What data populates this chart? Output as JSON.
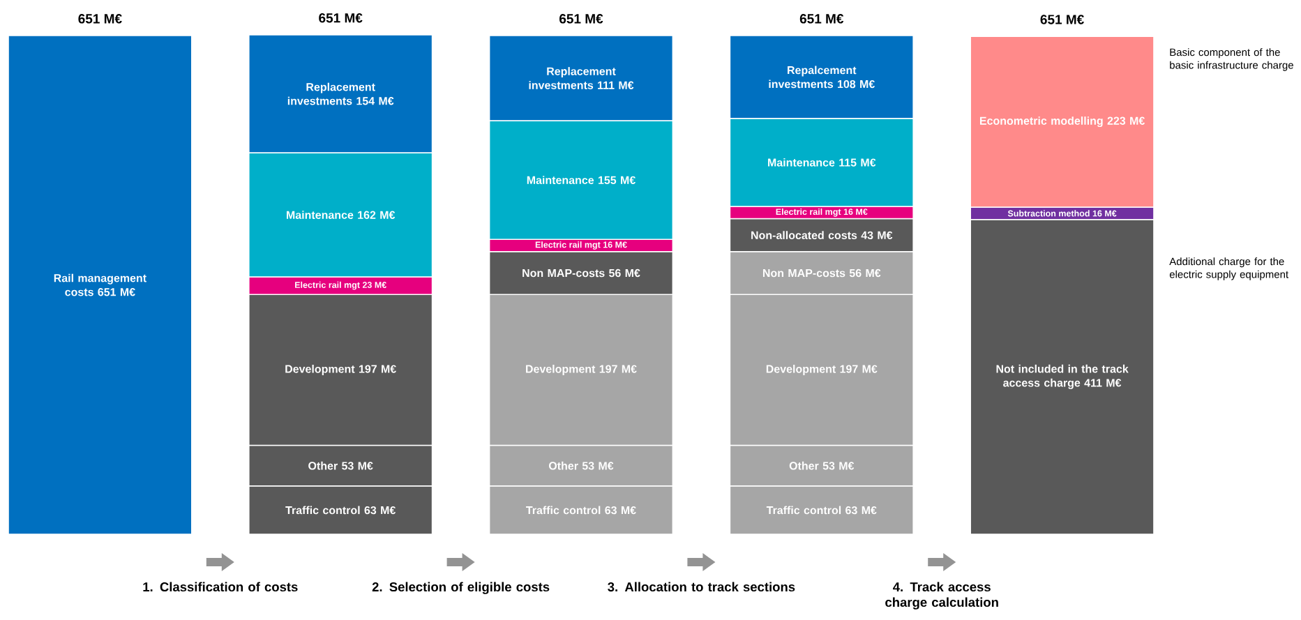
{
  "chart_data": {
    "type": "bar",
    "stacked": true,
    "categories": [
      null,
      null,
      null,
      null,
      null
    ],
    "series": [
      {
        "values": [
          651,
          63,
          63,
          63,
          411
        ],
        "colors": [
          "#0070c0",
          "#595959",
          "#a6a6a6",
          "#a6a6a6",
          "#595959"
        ],
        "value_labels": [
          "Rail management costs 651 M€",
          "Traffic control 63 M€",
          "Traffic control 63 M€",
          "Traffic control 63 M€",
          "Not included in the track access charge 411 M€"
        ]
      },
      {
        "values": [
          null,
          53,
          53,
          53,
          16
        ],
        "colors": [
          null,
          "#595959",
          "#a6a6a6",
          "#a6a6a6",
          "#7030a0"
        ],
        "value_labels": [
          null,
          "Other 53 M€",
          "Other 53 M€",
          "Other 53 M€",
          "Subtraction method 16 M€"
        ]
      },
      {
        "values": [
          null,
          197,
          197,
          197,
          223
        ],
        "colors": [
          null,
          "#595959",
          "#a6a6a6",
          "#a6a6a6",
          "#ff8a8a"
        ],
        "value_labels": [
          null,
          "Development 197 M€",
          "Development 197 M€",
          "Development 197 M€",
          "Econometric modelling 223 M€"
        ]
      },
      {
        "values": [
          null,
          23,
          56,
          56,
          null
        ],
        "colors": [
          null,
          "#e6007e",
          "#595959",
          "#a6a6a6",
          null
        ],
        "value_labels": [
          null,
          "Electric rail mgt 23 M€",
          "Non MAP-costs 56 M€",
          "Non MAP-costs 56 M€",
          null
        ]
      },
      {
        "values": [
          null,
          162,
          16,
          43,
          null
        ],
        "colors": [
          null,
          "#00afc9",
          "#e6007e",
          "#595959",
          null
        ],
        "value_labels": [
          null,
          "Maintenance 162 M€",
          "Electric rail mgt 16 M€",
          "Non-allocated costs 43 M€",
          null
        ]
      },
      {
        "values": [
          null,
          154,
          155,
          16,
          null
        ],
        "colors": [
          null,
          "#0070c0",
          "#00afc9",
          "#e6007e",
          null
        ],
        "value_labels": [
          null,
          "Replacement investments 154 M€",
          "Maintenance 155 M€",
          "Electric rail mgt 16 M€",
          null
        ]
      },
      {
        "values": [
          null,
          null,
          111,
          115,
          null
        ],
        "colors": [
          null,
          null,
          "#0070c0",
          "#00afc9",
          null
        ],
        "value_labels": [
          null,
          null,
          "Replacement investments 111 M€",
          "Maintenance 115 M€",
          null
        ]
      },
      {
        "values": [
          null,
          null,
          null,
          108,
          null
        ],
        "colors": [
          null,
          null,
          null,
          "#0070c0",
          null
        ],
        "value_labels": [
          null,
          null,
          null,
          "Repalcement investments 108 M€",
          null
        ]
      }
    ],
    "totals": [
      "651 M€",
      "651 M€",
      "651 M€",
      "651 M€",
      "651 M€"
    ],
    "annotations": [
      "1. Classification of costs",
      "2. Selection of eligible costs",
      "3. Allocation to track sections",
      "4. Track access charge calculation",
      "Basic component of the basic infrastructure charge",
      "Additional charge for the electric supply equipment"
    ]
  }
}
